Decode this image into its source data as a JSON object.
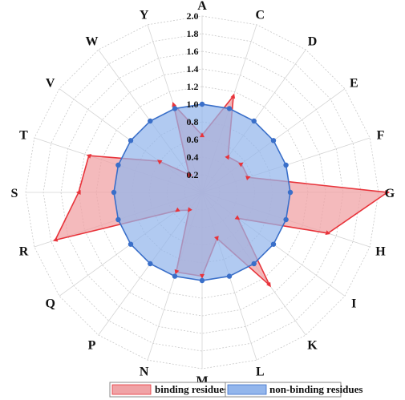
{
  "chart_data": {
    "type": "radar",
    "categories": [
      "A",
      "C",
      "D",
      "E",
      "F",
      "G",
      "H",
      "I",
      "K",
      "L",
      "M",
      "N",
      "P",
      "Q",
      "R",
      "S",
      "T",
      "V",
      "W",
      "Y"
    ],
    "series": [
      {
        "name": "binding residues",
        "values": [
          0.65,
          1.15,
          0.5,
          0.55,
          0.55,
          2.1,
          1.5,
          0.5,
          1.3,
          0.55,
          0.95,
          0.95,
          0.25,
          0.35,
          1.75,
          1.4,
          1.35,
          0.6,
          0.25,
          1.05
        ],
        "color": "#e8333a",
        "fill": "#f0a3a6"
      },
      {
        "name": "non-binding residues",
        "values": [
          1.0,
          1.0,
          1.0,
          1.0,
          1.0,
          1.0,
          1.0,
          1.0,
          1.0,
          1.0,
          1.0,
          1.0,
          1.0,
          1.0,
          1.0,
          1.0,
          1.0,
          1.0,
          1.0,
          1.0
        ],
        "color": "#3a6fc9",
        "fill": "#93b6ec"
      }
    ],
    "radial_ticks": [
      "0.2",
      "0.4",
      "0.6",
      "0.8",
      "1.0",
      "1.2",
      "1.4",
      "1.6",
      "1.8",
      "2.0"
    ],
    "rlim": [
      0,
      2.0
    ],
    "grid": true,
    "legend_position": "bottom"
  }
}
